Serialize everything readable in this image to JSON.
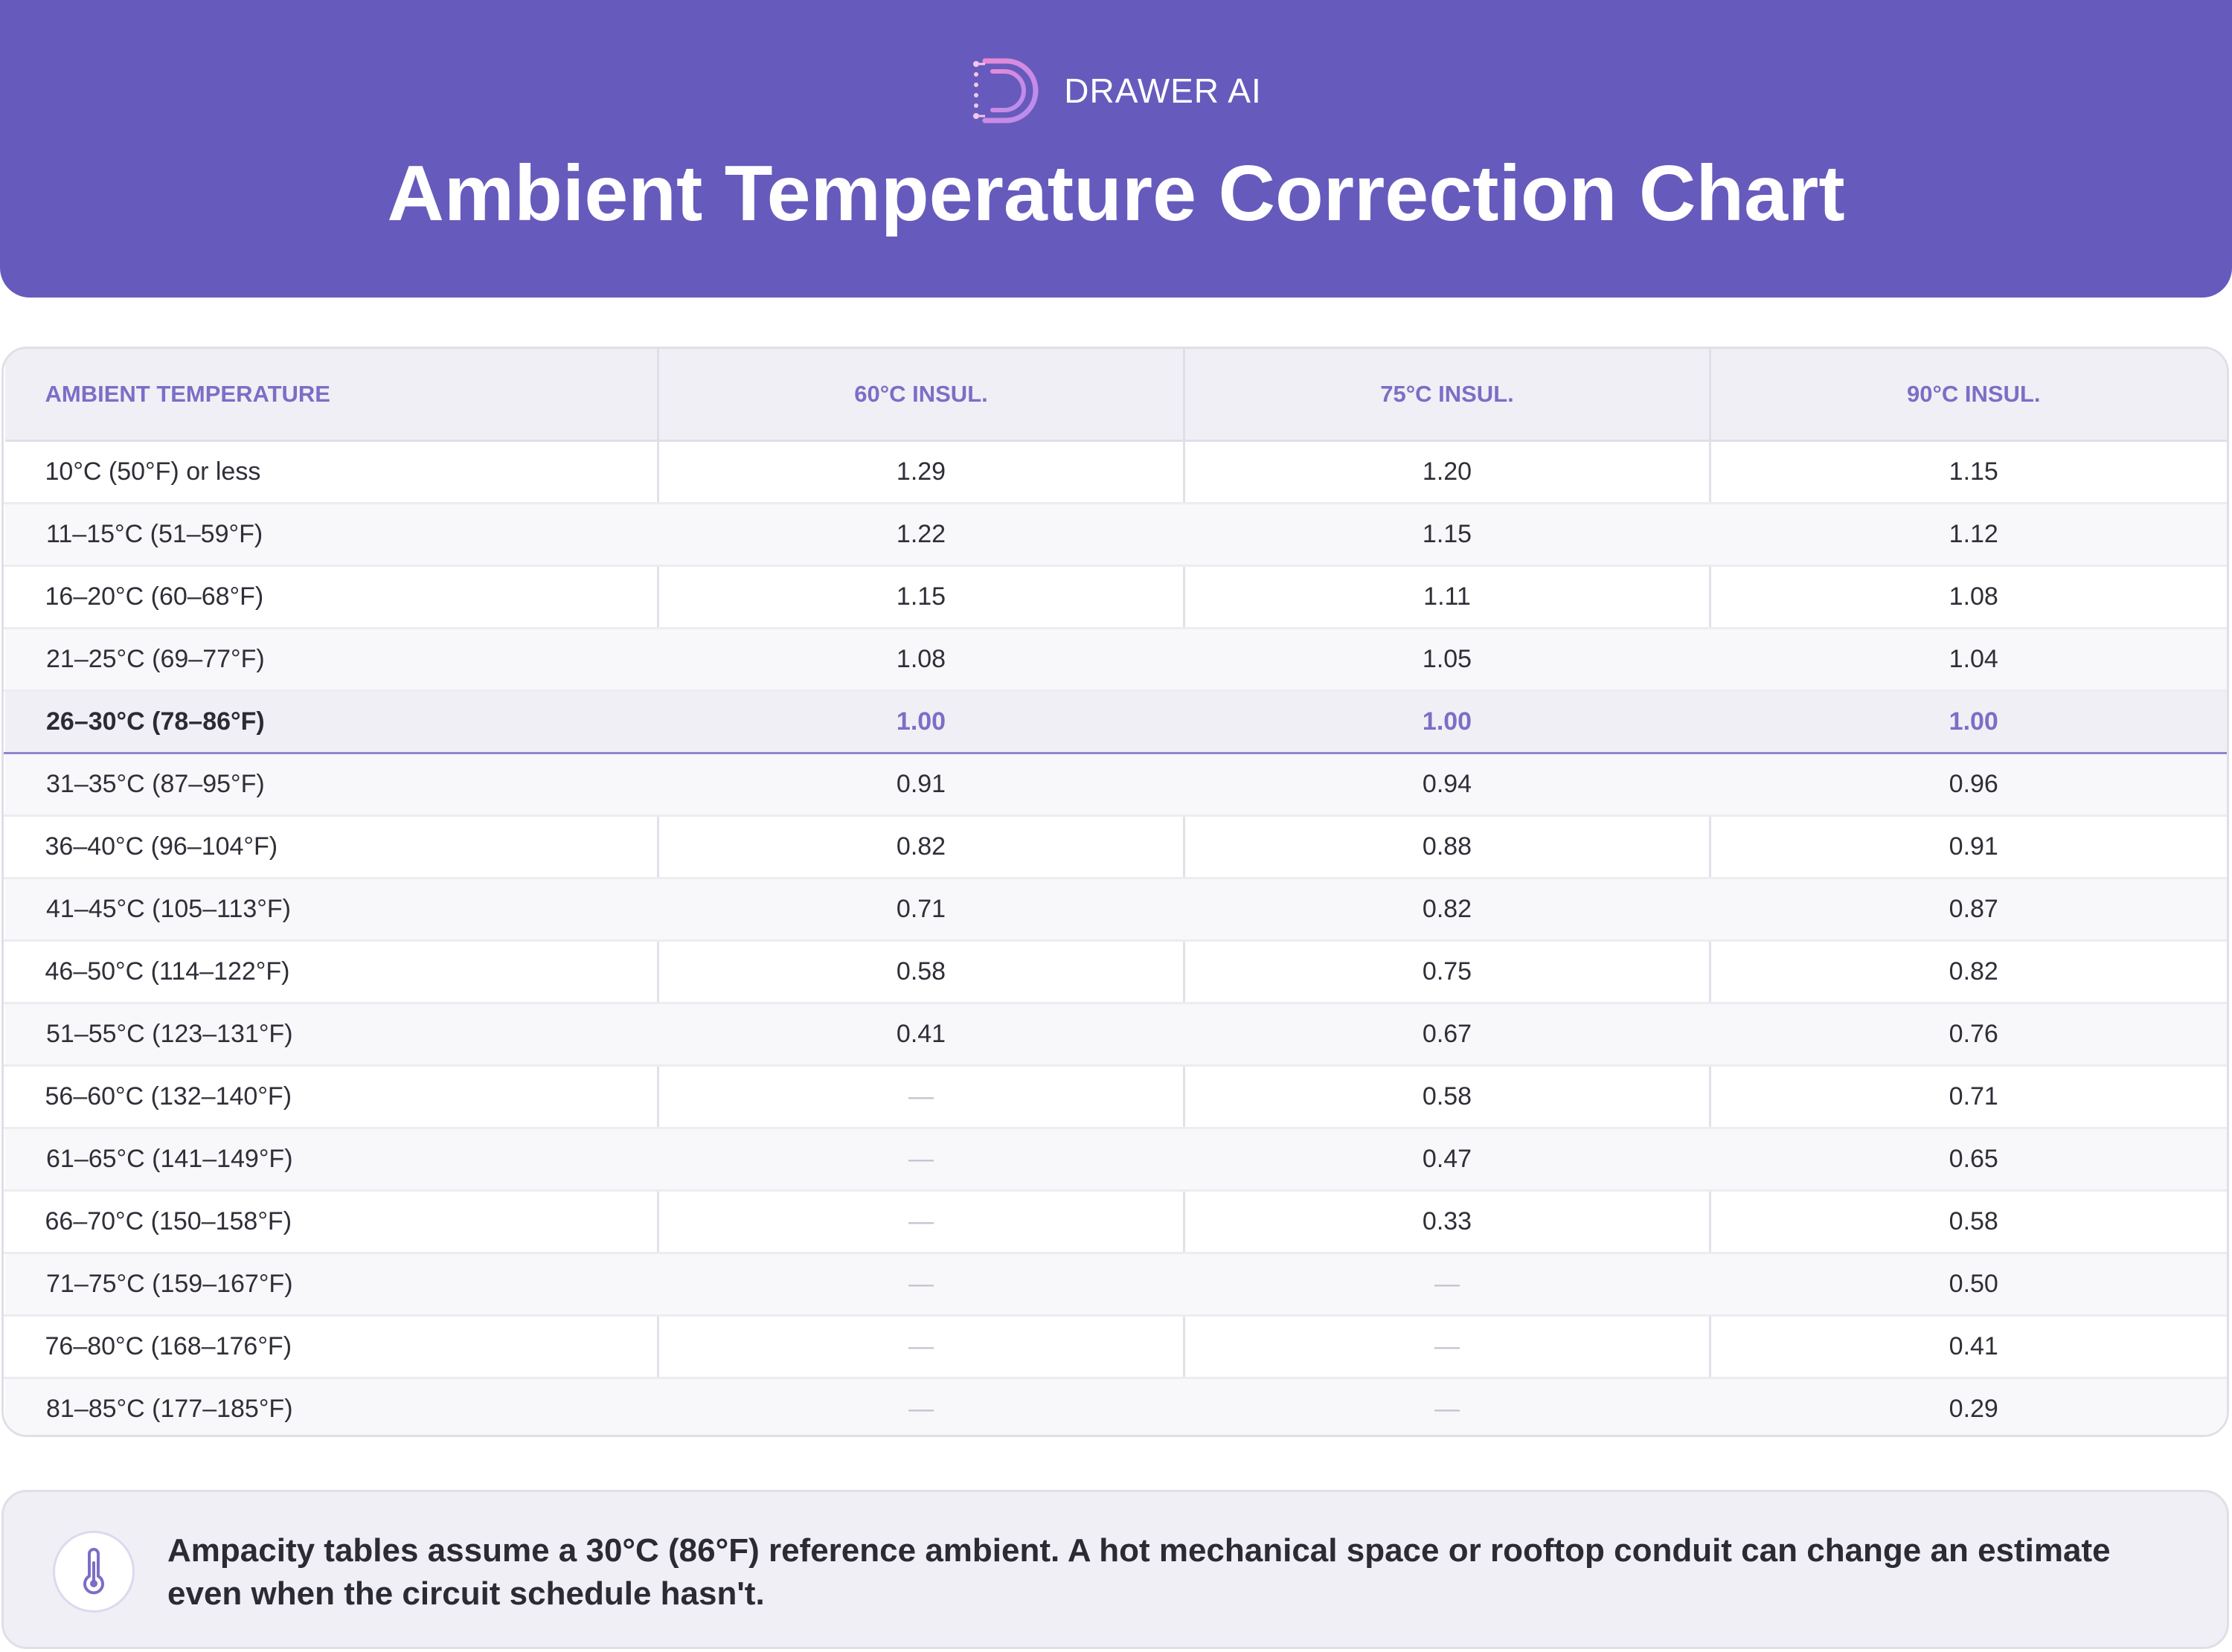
{
  "header": {
    "brand": "DRAWER AI",
    "title": "Ambient Temperature Correction Chart"
  },
  "table": {
    "columns": [
      "AMBIENT TEMPERATURE",
      "60°C INSUL.",
      "75°C INSUL.",
      "90°C INSUL."
    ],
    "reference_row_index": 4,
    "rows": [
      [
        "10°C (50°F) or less",
        "1.29",
        "1.20",
        "1.15"
      ],
      [
        "11–15°C (51–59°F)",
        "1.22",
        "1.15",
        "1.12"
      ],
      [
        "16–20°C (60–68°F)",
        "1.15",
        "1.11",
        "1.08"
      ],
      [
        "21–25°C (69–77°F)",
        "1.08",
        "1.05",
        "1.04"
      ],
      [
        "26–30°C (78–86°F)",
        "1.00",
        "1.00",
        "1.00"
      ],
      [
        "31–35°C (87–95°F)",
        "0.91",
        "0.94",
        "0.96"
      ],
      [
        "36–40°C (96–104°F)",
        "0.82",
        "0.88",
        "0.91"
      ],
      [
        "41–45°C (105–113°F)",
        "0.71",
        "0.82",
        "0.87"
      ],
      [
        "46–50°C (114–122°F)",
        "0.58",
        "0.75",
        "0.82"
      ],
      [
        "51–55°C (123–131°F)",
        "0.41",
        "0.67",
        "0.76"
      ],
      [
        "56–60°C (132–140°F)",
        "—",
        "0.58",
        "0.71"
      ],
      [
        "61–65°C (141–149°F)",
        "—",
        "0.47",
        "0.65"
      ],
      [
        "66–70°C (150–158°F)",
        "—",
        "0.33",
        "0.58"
      ],
      [
        "71–75°C (159–167°F)",
        "—",
        "—",
        "0.50"
      ],
      [
        "76–80°C (168–176°F)",
        "—",
        "—",
        "0.41"
      ],
      [
        "81–85°C (177–185°F)",
        "—",
        "—",
        "0.29"
      ]
    ]
  },
  "note": {
    "icon": "thermometer-icon",
    "text": "Ampacity tables assume a 30°C (86°F) reference ambient. A hot mechanical space or rooftop conduit can change an estimate even when the circuit schedule hasn't."
  },
  "colors": {
    "header_bg": "#665bbc",
    "accent": "#7b6ec6",
    "header_row_bg": "#f0eff5",
    "border": "#e0dfe8"
  }
}
